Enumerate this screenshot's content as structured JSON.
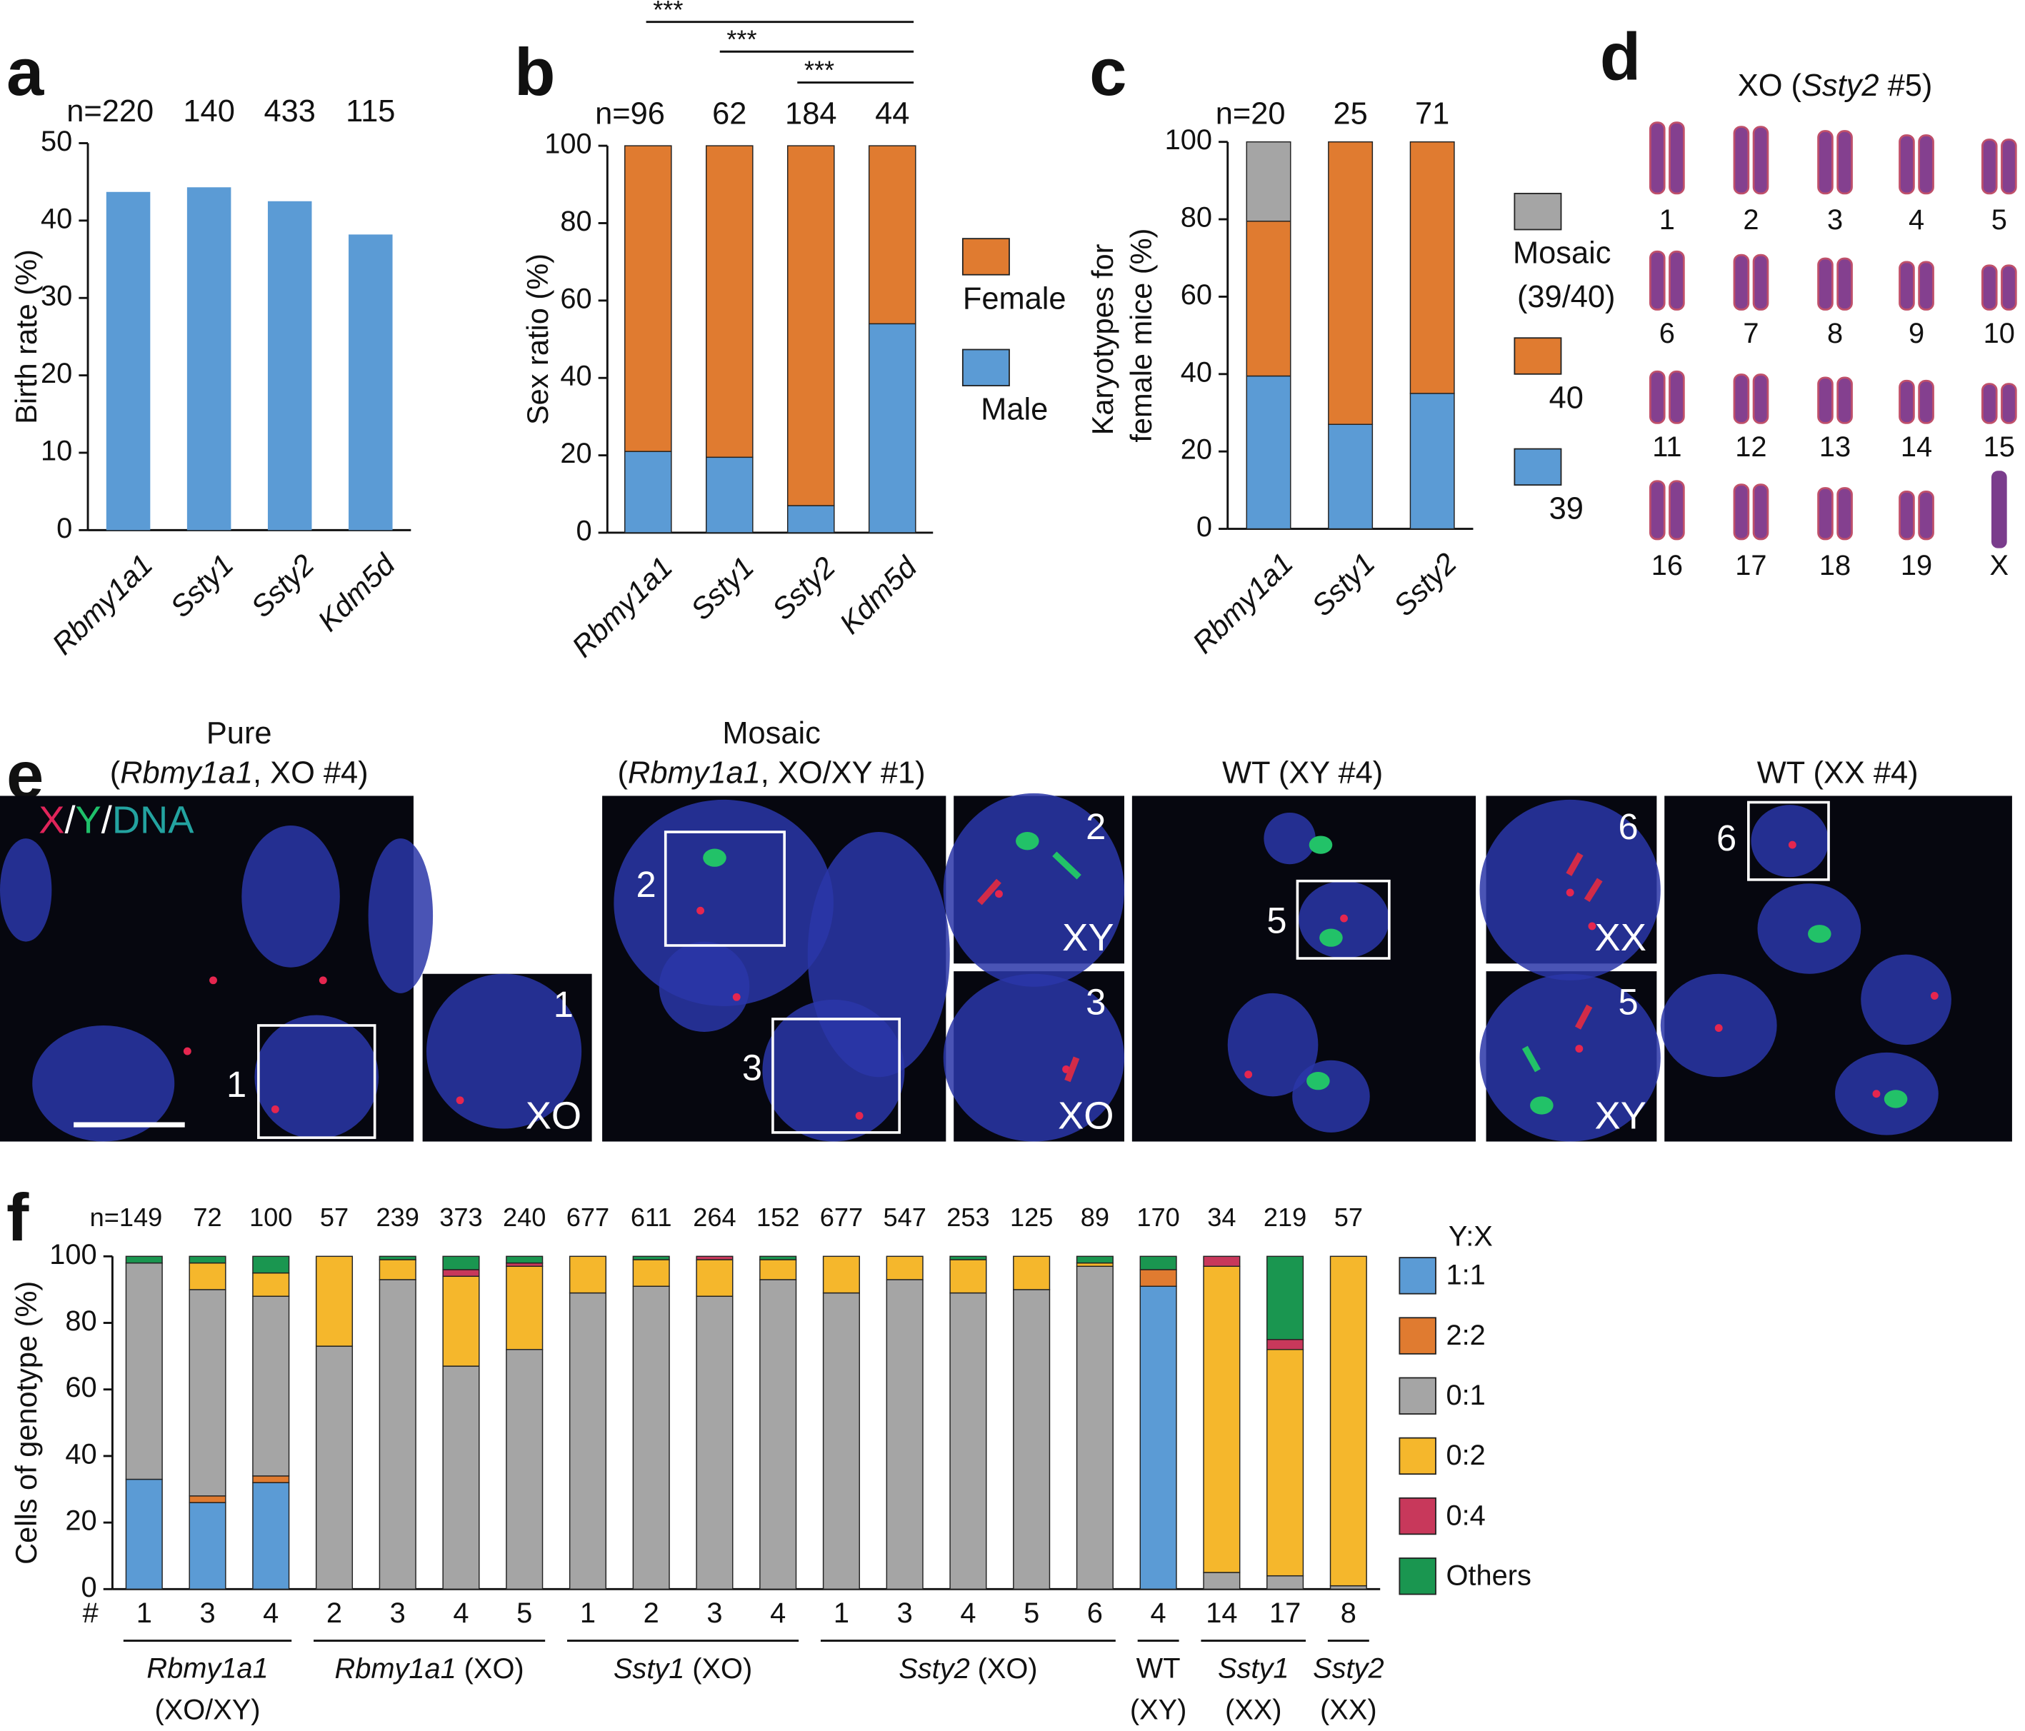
{
  "chart_data": [
    {
      "label": "a",
      "type": "bar",
      "ylabel": "Birth rate (%)",
      "categories": [
        "Rbmy1a1",
        "Ssty1",
        "Ssty2",
        "Kdm5d"
      ],
      "values": [
        43.7,
        44.3,
        42.5,
        38.2
      ],
      "color": "#5B9BD5",
      "ylim": [
        0,
        50
      ],
      "yticks": [
        0,
        10,
        20,
        30,
        40,
        50
      ],
      "n_prefix": "n=",
      "n": [
        220,
        140,
        433,
        115
      ]
    },
    {
      "label": "b",
      "type": "stacked_bar",
      "ylabel": "Sex ratio (%)",
      "categories": [
        "Rbmy1a1",
        "Ssty1",
        "Ssty2",
        "Kdm5d"
      ],
      "series": [
        {
          "name": "Male",
          "color": "#5B9BD5",
          "values": [
            21,
            19.5,
            7,
            54
          ]
        },
        {
          "name": "Female",
          "color": "#E07B30",
          "values": [
            79,
            80.5,
            93,
            46
          ]
        }
      ],
      "ylim": [
        0,
        100
      ],
      "yticks": [
        0,
        20,
        40,
        60,
        80,
        100
      ],
      "n_prefix": "n=",
      "n": [
        96,
        62,
        184,
        44
      ],
      "significance": [
        "***",
        "***",
        "***"
      ]
    },
    {
      "label": "c",
      "type": "stacked_bar",
      "ylabel": "Karyotypes for female mice (%)",
      "categories": [
        "Rbmy1a1",
        "Ssty1",
        "Ssty2"
      ],
      "series": [
        {
          "name": "39",
          "color": "#5B9BD5",
          "values": [
            39.5,
            27,
            35
          ]
        },
        {
          "name": "40",
          "color": "#E07B30",
          "values": [
            40,
            73,
            65
          ]
        },
        {
          "name": "Mosaic (39/40)",
          "color": "#A5A5A5",
          "values": [
            20.5,
            0,
            0
          ]
        }
      ],
      "ylim": [
        0,
        100
      ],
      "yticks": [
        0,
        20,
        40,
        60,
        80,
        100
      ],
      "n_prefix": "n=",
      "n": [
        20,
        25,
        71
      ]
    },
    {
      "label": "f",
      "type": "stacked_bar",
      "ylabel": "Cells of genotype (%)",
      "categories_title": "#",
      "categories": [
        "1",
        "3",
        "4",
        "2",
        "3",
        "4",
        "5",
        "1",
        "2",
        "3",
        "4",
        "1",
        "3",
        "4",
        "5",
        "6",
        "4",
        "14",
        "17",
        "8"
      ],
      "legend_title": "Y:X",
      "series": [
        {
          "name": "1:1",
          "color": "#5B9BD5",
          "values": [
            33,
            26,
            32,
            0,
            0,
            0,
            0,
            0,
            0,
            0,
            0,
            0,
            0,
            0,
            0,
            0,
            91,
            0,
            0,
            0
          ]
        },
        {
          "name": "2:2",
          "color": "#E07B30",
          "values": [
            0,
            2,
            2,
            0,
            0,
            0,
            0,
            0,
            0,
            0,
            0,
            0,
            0,
            0,
            0,
            0,
            5,
            0,
            0,
            0
          ]
        },
        {
          "name": "0:1",
          "color": "#A5A5A5",
          "values": [
            65,
            62,
            54,
            73,
            93,
            67,
            72,
            89,
            91,
            88,
            93,
            89,
            93,
            89,
            90,
            97,
            0,
            5,
            4,
            1
          ]
        },
        {
          "name": "0:2",
          "color": "#F5B72C",
          "values": [
            0,
            8,
            7,
            27,
            6,
            27,
            25,
            11,
            8,
            11,
            6,
            11,
            7,
            10,
            10,
            1,
            0,
            92,
            68,
            99
          ]
        },
        {
          "name": "0:4",
          "color": "#C8385B",
          "values": [
            0,
            0,
            0,
            0,
            0,
            2,
            1,
            0,
            0,
            1,
            0,
            0,
            0,
            0,
            0,
            0,
            0,
            3,
            3,
            0
          ]
        },
        {
          "name": "Others",
          "color": "#1A9650",
          "values": [
            2,
            2,
            5,
            0,
            1,
            4,
            2,
            0,
            1,
            0,
            1,
            0,
            0,
            1,
            0,
            2,
            4,
            0,
            25,
            0
          ]
        }
      ],
      "ylim": [
        0,
        100
      ],
      "yticks": [
        0,
        20,
        40,
        60,
        80,
        100
      ],
      "n_prefix": "n=",
      "n": [
        149,
        72,
        100,
        57,
        239,
        373,
        240,
        677,
        611,
        264,
        152,
        677,
        547,
        253,
        125,
        89,
        170,
        34,
        219,
        57
      ],
      "groups": [
        {
          "gene": "Rbmy1a1",
          "genotype": "(XO/XY)"
        },
        {
          "gene": "Rbmy1a1",
          "genotype": "(XO)"
        },
        {
          "gene": "Ssty1",
          "genotype": "(XO)"
        },
        {
          "gene": "Ssty2",
          "genotype": "(XO)"
        },
        {
          "gene": "WT",
          "genotype": "(XY)"
        },
        {
          "gene": "Ssty1",
          "genotype": "(XX)"
        },
        {
          "gene": "Ssty2",
          "genotype": "(XX)"
        }
      ]
    }
  ],
  "karyotype": {
    "label": "d",
    "title": [
      "XO (",
      "Ssty2",
      " #5)"
    ],
    "chromosomes": [
      "1",
      "2",
      "3",
      "4",
      "5",
      "6",
      "7",
      "8",
      "9",
      "10",
      "11",
      "12",
      "13",
      "14",
      "15",
      "16",
      "17",
      "18",
      "19",
      "X"
    ]
  },
  "fish": {
    "label": "e",
    "channels": [
      "X",
      "Y",
      "DNA"
    ],
    "separator": "/",
    "panels": [
      {
        "title": "Pure",
        "subtitle": [
          "(",
          "Rbmy1a1",
          ", XO #4)"
        ]
      },
      {
        "title": "Mosaic",
        "subtitle": [
          "(",
          "Rbmy1a1",
          ", XO/XY #1)"
        ]
      },
      {
        "subtitle": [
          "WT (XY #4)"
        ]
      },
      {
        "subtitle": [
          "WT (XX #4)"
        ]
      }
    ],
    "insets": [
      {
        "number": "1",
        "genotype": "XO"
      },
      {
        "number": "2",
        "genotype": "XY"
      },
      {
        "number": "3",
        "genotype": "XO"
      },
      {
        "number": "6",
        "genotype": "XX"
      },
      {
        "number": "5",
        "genotype": "XY"
      }
    ]
  }
}
